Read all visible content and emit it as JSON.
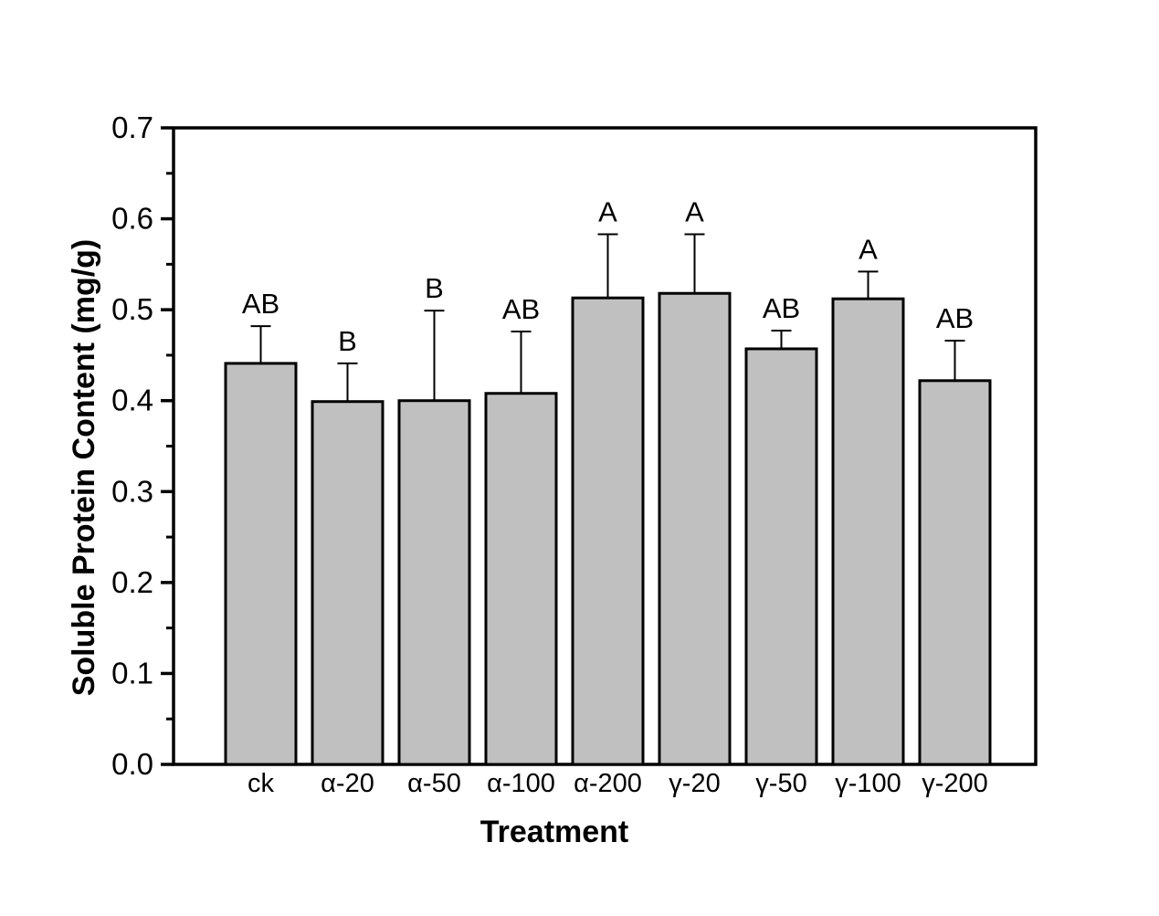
{
  "chart_data": {
    "type": "bar",
    "title": "",
    "xlabel": "Treatment",
    "ylabel": "Soluble Protein Content (mg/g)",
    "categories": [
      "ck",
      "α-20",
      "α-50",
      "α-100",
      "α-200",
      "γ-20",
      "γ-50",
      "γ-100",
      "γ-200"
    ],
    "values": [
      0.441,
      0.399,
      0.4,
      0.408,
      0.513,
      0.518,
      0.457,
      0.512,
      0.422
    ],
    "errors_upper": [
      0.041,
      0.042,
      0.099,
      0.068,
      0.07,
      0.065,
      0.02,
      0.03,
      0.044
    ],
    "significance_letters": [
      "AB",
      "B",
      "B",
      "AB",
      "A",
      "A",
      "AB",
      "A",
      "AB"
    ],
    "ylim": [
      0.0,
      0.7
    ],
    "ytick_step": 0.1,
    "yminor_step": 0.05,
    "ytick_labels": [
      "0.0",
      "0.1",
      "0.2",
      "0.3",
      "0.4",
      "0.5",
      "0.6",
      "0.7"
    ],
    "grid": "off",
    "legend": "none",
    "bar_fill_color": "#c0c0c0",
    "bar_edge_color": "#000000",
    "axis_color": "#000000",
    "background_color": "#ffffff"
  }
}
